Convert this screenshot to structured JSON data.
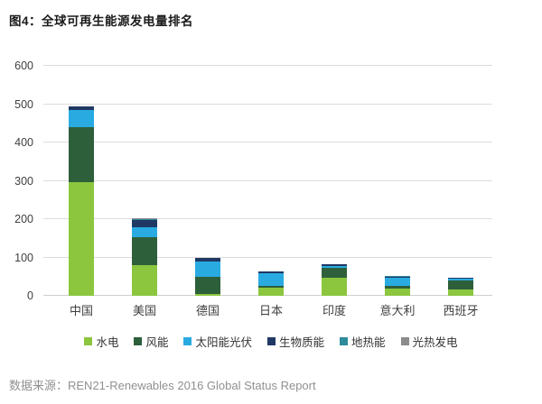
{
  "title": "图4：全球可再生能源发电量排名",
  "source": "数据来源：REN21-Renewables 2016 Global Status Report",
  "colors": {
    "hydro": "#8CC63F",
    "wind": "#2E5F3B",
    "solar_pv": "#29ABE2",
    "biomass": "#1F3864",
    "geothermal": "#2E8B9C",
    "csp": "#8C8C8C",
    "gridline": "#DCDCDC",
    "axis_text": "#3F3F3F",
    "source_text": "#909090"
  },
  "chart_data": {
    "type": "bar",
    "stacked": true,
    "title": "图4：全球可再生能源发电量排名",
    "categories": [
      "中国",
      "美国",
      "德国",
      "日本",
      "印度",
      "意大利",
      "西班牙"
    ],
    "series": [
      {
        "key": "hydro",
        "name": "水电",
        "color": "#8CC63F",
        "values": [
          296,
          80,
          5,
          22,
          47,
          18,
          17
        ]
      },
      {
        "key": "wind",
        "name": "风能",
        "color": "#2E5F3B",
        "values": [
          145,
          74,
          45,
          3,
          25,
          9,
          23
        ]
      },
      {
        "key": "solar-pv",
        "name": "太阳能光伏",
        "color": "#29ABE2",
        "values": [
          43,
          26,
          40,
          34,
          5,
          19,
          5
        ]
      },
      {
        "key": "biomass",
        "name": "生物质能",
        "color": "#1F3864",
        "values": [
          10,
          17,
          8,
          4,
          5,
          4,
          1
        ]
      },
      {
        "key": "geothermal",
        "name": "地热能",
        "color": "#2E8B9C",
        "values": [
          0,
          4,
          0,
          1,
          0,
          1,
          0
        ]
      },
      {
        "key": "csp",
        "name": "光热发电",
        "color": "#8C8C8C",
        "values": [
          0,
          2,
          0,
          0,
          0,
          0,
          2
        ]
      }
    ],
    "totals": [
      494,
      203,
      98,
      64,
      82,
      51,
      48
    ],
    "xlabel": "",
    "ylabel": "",
    "ylim": [
      0,
      600
    ],
    "yticks": [
      0,
      100,
      200,
      300,
      400,
      500,
      600
    ],
    "grid": true,
    "legend_position": "bottom"
  }
}
